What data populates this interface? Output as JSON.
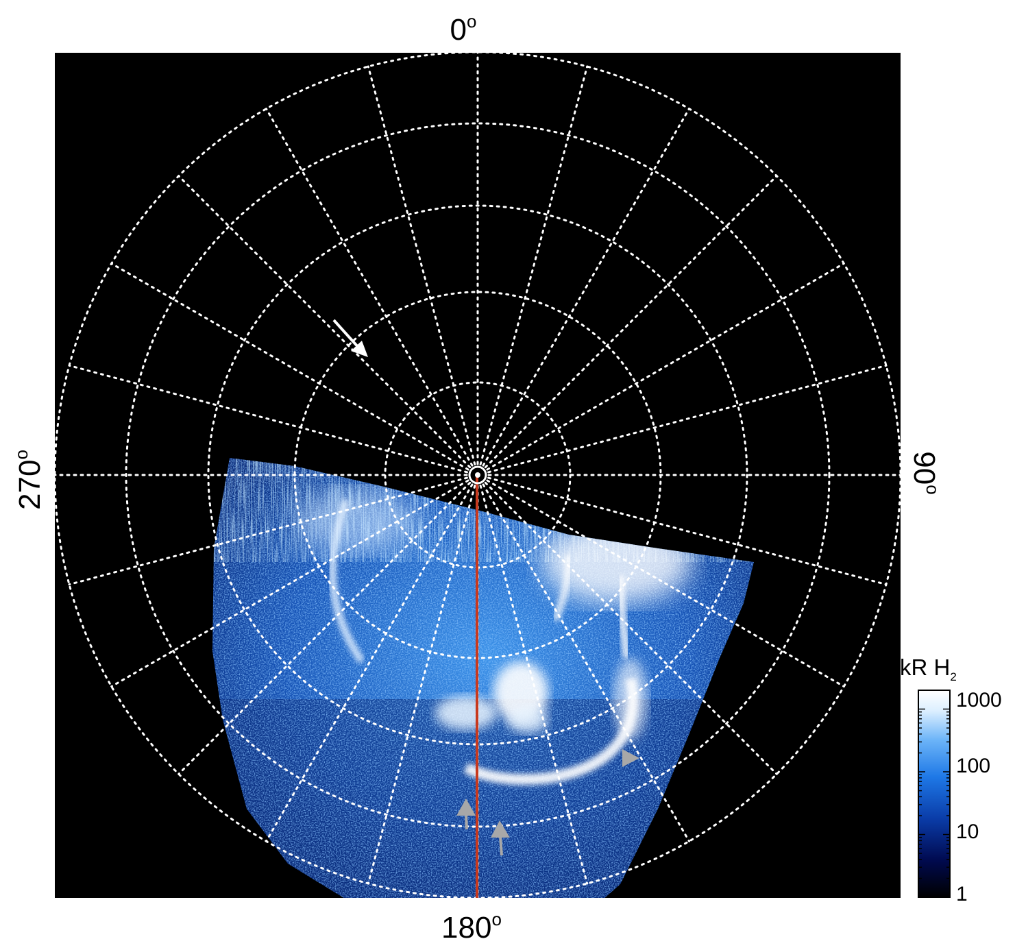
{
  "figure": {
    "labels": {
      "top": "0",
      "bottom": "180",
      "left": "270",
      "right": "90",
      "degree_symbol": "o"
    },
    "colorbar": {
      "title_main": "kR H",
      "title_sub": "2",
      "ticks": [
        "1000",
        "100",
        "10",
        "1"
      ],
      "scale": "log",
      "range": [
        1,
        2000
      ],
      "colors": [
        "#000000",
        "#000a50",
        "#0a3ca8",
        "#1e78e6",
        "#6cb4f8",
        "#dcefff",
        "#ffffff"
      ]
    },
    "image": {
      "background": "#000000",
      "grid_color": "#ffffff",
      "meridian_color": "#c8391e",
      "arrow_white": "#ffffff",
      "arrow_grey": "#a8a8a8"
    }
  }
}
